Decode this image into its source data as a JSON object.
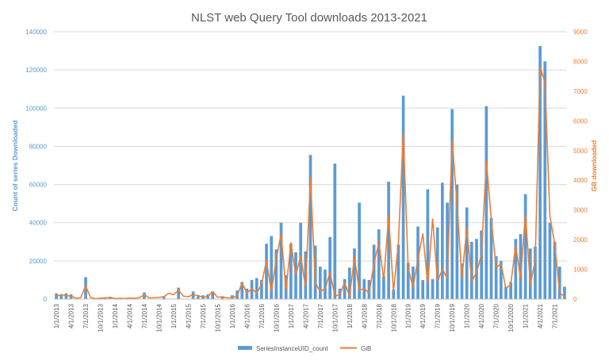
{
  "chart_data": {
    "type": "bar",
    "title": "NLST web Query Tool downloads 2013-2021",
    "ylabel_left": "Count of series Downloaded",
    "ylabel_right": "GB downloaded",
    "ylim_left": [
      0,
      140000
    ],
    "ylim_right": [
      0,
      9000
    ],
    "yticks_left": [
      "0",
      "20000",
      "40000",
      "60000",
      "80000",
      "100000",
      "120000",
      "140000"
    ],
    "yticks_right": [
      "0",
      "1000",
      "2000",
      "3000",
      "4000",
      "5000",
      "6000",
      "7000",
      "8000",
      "9000"
    ],
    "xticks": [
      "1/1/2013",
      "4/1/2013",
      "7/1/2013",
      "10/1/2013",
      "1/1/2014",
      "4/1/2014",
      "7/1/2014",
      "10/1/2014",
      "1/1/2015",
      "4/1/2015",
      "7/1/2015",
      "10/1/2015",
      "1/1/2016",
      "4/1/2016",
      "7/1/2016",
      "10/1/2016",
      "1/1/2017",
      "4/1/2017",
      "7/1/2017",
      "10/1/2017",
      "1/1/2018",
      "4/1/2018",
      "7/1/2018",
      "10/1/2018",
      "1/1/2019",
      "4/1/2019",
      "7/1/2019",
      "10/1/2019",
      "1/1/2020",
      "4/1/2020",
      "7/1/2020",
      "10/1/2020",
      "1/1/2021",
      "4/1/2021",
      "7/1/2021"
    ],
    "grid": true,
    "legend_position": "bottom",
    "bar_series": {
      "name": "SeriesInstanceUID_count",
      "color": "#5b9bd5",
      "points": [
        [
          "1/1/2013",
          3000
        ],
        [
          "2/1/2013",
          2500
        ],
        [
          "3/1/2013",
          3000
        ],
        [
          "4/1/2013",
          2500
        ],
        [
          "7/1/2013",
          11500
        ],
        [
          "11/1/2013",
          1000
        ],
        [
          "12/1/2013",
          1200
        ],
        [
          "7/1/2014",
          3500
        ],
        [
          "11/1/2014",
          1500
        ],
        [
          "2/1/2015",
          6000
        ],
        [
          "5/1/2015",
          4000
        ],
        [
          "6/1/2015",
          1500
        ],
        [
          "7/1/2015",
          2000
        ],
        [
          "8/1/2015",
          2500
        ],
        [
          "9/1/2015",
          4000
        ],
        [
          "11/1/2015",
          1000
        ],
        [
          "1/1/2016",
          2000
        ],
        [
          "2/1/2016",
          4500
        ],
        [
          "3/1/2016",
          9000
        ],
        [
          "4/1/2016",
          5500
        ],
        [
          "5/1/2016",
          10000
        ],
        [
          "6/1/2016",
          11000
        ],
        [
          "7/1/2016",
          10000
        ],
        [
          "8/1/2016",
          29000
        ],
        [
          "9/1/2016",
          33000
        ],
        [
          "10/1/2016",
          26000
        ],
        [
          "11/1/2016",
          40000
        ],
        [
          "12/1/2016",
          12500
        ],
        [
          "1/1/2017",
          29000
        ],
        [
          "2/1/2017",
          24500
        ],
        [
          "3/1/2017",
          40000
        ],
        [
          "4/1/2017",
          25000
        ],
        [
          "5/1/2017",
          75500
        ],
        [
          "6/1/2017",
          28000
        ],
        [
          "7/1/2017",
          17000
        ],
        [
          "8/1/2017",
          15500
        ],
        [
          "9/1/2017",
          32500
        ],
        [
          "10/1/2017",
          71000
        ],
        [
          "11/1/2017",
          5500
        ],
        [
          "12/1/2017",
          10500
        ],
        [
          "1/1/2018",
          16500
        ],
        [
          "2/1/2018",
          26500
        ],
        [
          "3/1/2018",
          50500
        ],
        [
          "4/1/2018",
          10500
        ],
        [
          "5/1/2018",
          10000
        ],
        [
          "6/1/2018",
          28500
        ],
        [
          "7/1/2018",
          36500
        ],
        [
          "8/1/2018",
          12000
        ],
        [
          "9/1/2018",
          61500
        ],
        [
          "10/1/2018",
          5000
        ],
        [
          "11/1/2018",
          28500
        ],
        [
          "12/1/2018",
          106500
        ],
        [
          "1/1/2019",
          19000
        ],
        [
          "2/1/2019",
          17000
        ],
        [
          "3/1/2019",
          38000
        ],
        [
          "4/1/2019",
          10000
        ],
        [
          "5/1/2019",
          57500
        ],
        [
          "6/1/2019",
          10500
        ],
        [
          "7/1/2019",
          37500
        ],
        [
          "8/1/2019",
          61000
        ],
        [
          "9/1/2019",
          50500
        ],
        [
          "10/1/2019",
          99500
        ],
        [
          "11/1/2019",
          60000
        ],
        [
          "12/1/2019",
          18500
        ],
        [
          "1/1/2020",
          48000
        ],
        [
          "2/1/2020",
          30000
        ],
        [
          "3/1/2020",
          31500
        ],
        [
          "4/1/2020",
          36000
        ],
        [
          "5/1/2020",
          101000
        ],
        [
          "6/1/2020",
          42500
        ],
        [
          "7/1/2020",
          22500
        ],
        [
          "8/1/2020",
          20000
        ],
        [
          "9/1/2020",
          6500
        ],
        [
          "10/1/2020",
          9000
        ],
        [
          "11/1/2020",
          31500
        ],
        [
          "12/1/2020",
          34000
        ],
        [
          "1/1/2021",
          55000
        ],
        [
          "2/1/2021",
          26500
        ],
        [
          "3/1/2021",
          27500
        ],
        [
          "4/1/2021",
          132500
        ],
        [
          "5/1/2021",
          124500
        ],
        [
          "6/1/2021",
          40000
        ],
        [
          "7/1/2021",
          30000
        ],
        [
          "8/1/2021",
          17000
        ],
        [
          "9/1/2021",
          6500
        ]
      ]
    },
    "line_series": {
      "name": "GiB",
      "color": "#ed7d31",
      "points": [
        [
          "1/1/2013",
          100
        ],
        [
          "2/1/2013",
          150
        ],
        [
          "3/1/2013",
          120
        ],
        [
          "4/1/2013",
          100
        ],
        [
          "5/1/2013",
          30
        ],
        [
          "6/1/2013",
          50
        ],
        [
          "7/1/2013",
          450
        ],
        [
          "8/1/2013",
          50
        ],
        [
          "9/1/2013",
          20
        ],
        [
          "10/1/2013",
          30
        ],
        [
          "11/1/2013",
          40
        ],
        [
          "12/1/2013",
          60
        ],
        [
          "1/1/2014",
          20
        ],
        [
          "2/1/2014",
          30
        ],
        [
          "3/1/2014",
          20
        ],
        [
          "4/1/2014",
          40
        ],
        [
          "5/1/2014",
          30
        ],
        [
          "6/1/2014",
          50
        ],
        [
          "7/1/2014",
          150
        ],
        [
          "8/1/2014",
          40
        ],
        [
          "9/1/2014",
          50
        ],
        [
          "10/1/2014",
          60
        ],
        [
          "11/1/2014",
          80
        ],
        [
          "12/1/2014",
          200
        ],
        [
          "1/1/2015",
          150
        ],
        [
          "2/1/2015",
          300
        ],
        [
          "3/1/2015",
          100
        ],
        [
          "4/1/2015",
          80
        ],
        [
          "5/1/2015",
          150
        ],
        [
          "6/1/2015",
          120
        ],
        [
          "7/1/2015",
          60
        ],
        [
          "8/1/2015",
          100
        ],
        [
          "9/1/2015",
          250
        ],
        [
          "10/1/2015",
          60
        ],
        [
          "11/1/2015",
          80
        ],
        [
          "12/1/2015",
          40
        ],
        [
          "1/1/2016",
          50
        ],
        [
          "2/1/2016",
          100
        ],
        [
          "3/1/2016",
          550
        ],
        [
          "4/1/2016",
          200
        ],
        [
          "5/1/2016",
          350
        ],
        [
          "6/1/2016",
          200
        ],
        [
          "7/1/2016",
          500
        ],
        [
          "8/1/2016",
          1300
        ],
        [
          "9/1/2016",
          250
        ],
        [
          "10/1/2016",
          1350
        ],
        [
          "11/1/2016",
          2200
        ],
        [
          "12/1/2016",
          300
        ],
        [
          "1/1/2017",
          1900
        ],
        [
          "2/1/2017",
          800
        ],
        [
          "3/1/2017",
          1450
        ],
        [
          "4/1/2017",
          400
        ],
        [
          "5/1/2017",
          4050
        ],
        [
          "6/1/2017",
          550
        ],
        [
          "7/1/2017",
          250
        ],
        [
          "8/1/2017",
          350
        ],
        [
          "9/1/2017",
          900
        ],
        [
          "10/1/2017",
          100
        ],
        [
          "11/1/2017",
          150
        ],
        [
          "12/1/2017",
          550
        ],
        [
          "1/1/2018",
          100
        ],
        [
          "2/1/2018",
          1400
        ],
        [
          "3/1/2018",
          300
        ],
        [
          "4/1/2018",
          350
        ],
        [
          "5/1/2018",
          200
        ],
        [
          "6/1/2018",
          1200
        ],
        [
          "7/1/2018",
          1900
        ],
        [
          "8/1/2018",
          650
        ],
        [
          "9/1/2018",
          2800
        ],
        [
          "10/1/2018",
          250
        ],
        [
          "11/1/2018",
          1900
        ],
        [
          "12/1/2018",
          5600
        ],
        [
          "1/1/2019",
          1050
        ],
        [
          "2/1/2019",
          400
        ],
        [
          "3/1/2019",
          1350
        ],
        [
          "4/1/2019",
          2200
        ],
        [
          "5/1/2019",
          500
        ],
        [
          "6/1/2019",
          2700
        ],
        [
          "7/1/2019",
          600
        ],
        [
          "8/1/2019",
          1000
        ],
        [
          "9/1/2019",
          700
        ],
        [
          "10/1/2019",
          5350
        ],
        [
          "11/1/2019",
          3200
        ],
        [
          "12/1/2019",
          700
        ],
        [
          "1/1/2020",
          2400
        ],
        [
          "2/1/2020",
          600
        ],
        [
          "3/1/2020",
          900
        ],
        [
          "4/1/2020",
          1500
        ],
        [
          "5/1/2020",
          4650
        ],
        [
          "6/1/2020",
          2700
        ],
        [
          "7/1/2020",
          1050
        ],
        [
          "8/1/2020",
          1200
        ],
        [
          "9/1/2020",
          350
        ],
        [
          "10/1/2020",
          500
        ],
        [
          "11/1/2020",
          1800
        ],
        [
          "12/1/2020",
          700
        ],
        [
          "1/1/2021",
          2850
        ],
        [
          "2/1/2021",
          500
        ],
        [
          "3/1/2021",
          1300
        ],
        [
          "4/1/2021",
          7800
        ],
        [
          "5/1/2021",
          7300
        ],
        [
          "6/1/2021",
          2800
        ],
        [
          "7/1/2021",
          1850
        ],
        [
          "8/1/2021",
          200
        ],
        [
          "9/1/2021",
          100
        ]
      ]
    }
  }
}
